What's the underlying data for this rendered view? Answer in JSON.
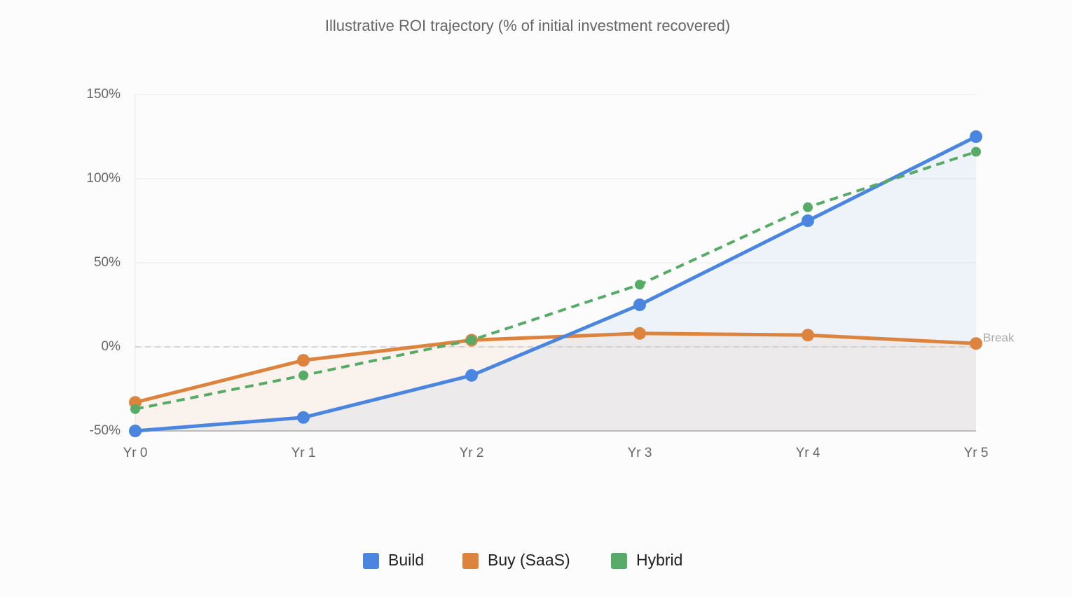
{
  "chart_data": {
    "type": "line",
    "title": "Illustrative ROI trajectory (% of initial investment recovered)",
    "categories": [
      "Yr 0",
      "Yr 1",
      "Yr 2",
      "Yr 3",
      "Yr 4",
      "Yr 5"
    ],
    "series": [
      {
        "name": "Build",
        "color": "#4a86df",
        "values": [
          -50,
          -42,
          -17,
          25,
          75,
          125
        ],
        "fill": true,
        "dashed": false
      },
      {
        "name": "Buy (SaaS)",
        "color": "#dc843e",
        "values": [
          -33,
          -8,
          4,
          8,
          7,
          2
        ],
        "fill": true,
        "dashed": false
      },
      {
        "name": "Hybrid",
        "color": "#57ab67",
        "values": [
          -37,
          -17,
          4,
          37,
          83,
          116
        ],
        "fill": false,
        "dashed": true
      }
    ],
    "ylim": [
      -50,
      150
    ],
    "yticks": [
      {
        "value": -50,
        "label": "-50%"
      },
      {
        "value": 0,
        "label": "0%"
      },
      {
        "value": 50,
        "label": "50%"
      },
      {
        "value": 100,
        "label": "100%"
      },
      {
        "value": 150,
        "label": "150%"
      }
    ],
    "reference_line": {
      "value": 0,
      "label": "Break"
    },
    "grid": true,
    "legend": "bottom"
  }
}
